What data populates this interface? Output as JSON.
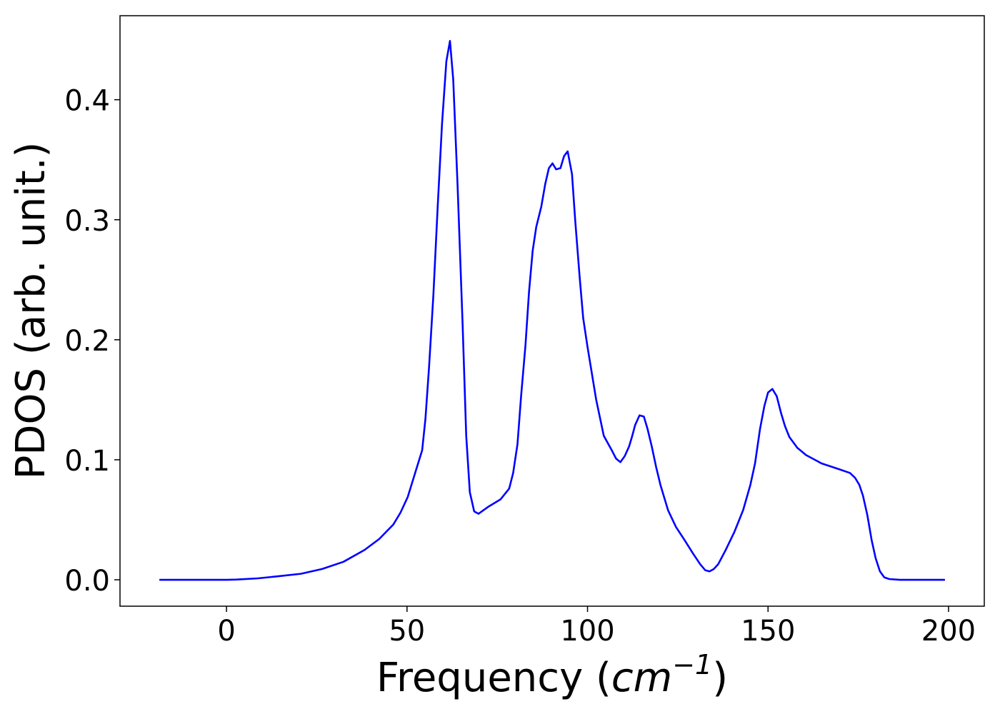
{
  "chart_data": {
    "type": "line",
    "xlabel": [
      "Frequency (",
      "cm",
      "−1",
      ")"
    ],
    "ylabel": "PDOS (arb. unit.)",
    "xlim": [
      -29.5,
      209.9
    ],
    "ylim": [
      -0.022,
      0.47
    ],
    "xticks": [
      0,
      50,
      100,
      150,
      200
    ],
    "yticks": [
      {
        "value": 0,
        "label": "0.0"
      },
      0.1,
      0.2,
      0.3,
      0.4
    ],
    "x": [
      -18.6,
      0,
      2.8,
      8.7,
      14.6,
      20.6,
      26.5,
      32.4,
      38.3,
      42.3,
      46.2,
      48.2,
      50.2,
      54.2,
      55.1,
      56.1,
      57.3,
      58.5,
      59.7,
      60.9,
      61.9,
      62.8,
      64.0,
      65.4,
      66.4,
      67.4,
      68.6,
      69.8,
      72.6,
      75.9,
      78.3,
      79.4,
      80.6,
      81.6,
      82.8,
      83.8,
      84.8,
      85.8,
      87.2,
      88.3,
      89.3,
      90.3,
      91.3,
      92.5,
      93.5,
      94.5,
      95.7,
      96.6,
      97.8,
      98.8,
      100.0,
      102.4,
      104.5,
      106.7,
      107.9,
      109.1,
      110.3,
      111.5,
      112.3,
      113.2,
      114.4,
      115.6,
      116.6,
      117.8,
      119.0,
      120.2,
      122.3,
      124.5,
      126.9,
      129.2,
      131.2,
      132.6,
      133.8,
      135.0,
      136.2,
      138.3,
      140.7,
      143.1,
      145.1,
      146.4,
      147.8,
      149.0,
      150.0,
      151.2,
      152.4,
      153.6,
      154.7,
      155.9,
      158.1,
      160.5,
      164.8,
      169.8,
      172.7,
      174.1,
      175.3,
      176.3,
      177.5,
      178.7,
      179.8,
      181.0,
      182.2,
      183.6,
      186.5,
      199.0
    ],
    "series": [
      {
        "name": "PDOS",
        "color": "#0000ff",
        "values": [
          0,
          0,
          0.0002,
          0.0012,
          0.003,
          0.005,
          0.009,
          0.015,
          0.025,
          0.034,
          0.046,
          0.056,
          0.069,
          0.108,
          0.134,
          0.177,
          0.237,
          0.311,
          0.38,
          0.432,
          0.449,
          0.417,
          0.329,
          0.213,
          0.12,
          0.073,
          0.057,
          0.055,
          0.061,
          0.067,
          0.076,
          0.089,
          0.113,
          0.153,
          0.195,
          0.24,
          0.274,
          0.294,
          0.311,
          0.33,
          0.343,
          0.347,
          0.342,
          0.343,
          0.353,
          0.357,
          0.338,
          0.299,
          0.253,
          0.218,
          0.194,
          0.15,
          0.12,
          0.108,
          0.101,
          0.098,
          0.103,
          0.111,
          0.119,
          0.129,
          0.137,
          0.136,
          0.126,
          0.111,
          0.094,
          0.079,
          0.058,
          0.044,
          0.033,
          0.022,
          0.013,
          0.008,
          0.007,
          0.009,
          0.013,
          0.025,
          0.04,
          0.058,
          0.079,
          0.097,
          0.126,
          0.145,
          0.156,
          0.159,
          0.153,
          0.139,
          0.128,
          0.119,
          0.11,
          0.104,
          0.097,
          0.092,
          0.089,
          0.085,
          0.079,
          0.07,
          0.054,
          0.033,
          0.018,
          0.007,
          0.002,
          0.0006,
          0,
          0
        ]
      }
    ]
  }
}
